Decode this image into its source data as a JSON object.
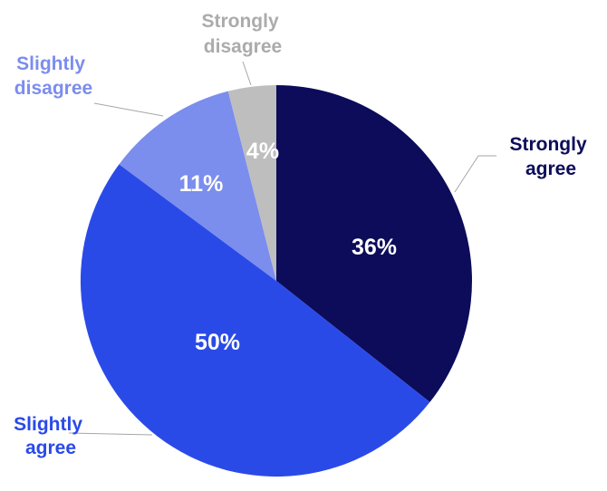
{
  "chart_data": {
    "type": "pie",
    "title": "",
    "start_angle_deg": 0,
    "direction": "clockwise",
    "slices": [
      {
        "label_lines": [
          "Strongly",
          "agree"
        ],
        "value": 36,
        "value_label": "36%",
        "color": "#0c0c5a",
        "label_color": "#0c0c5a"
      },
      {
        "label_lines": [
          "Slightly",
          "agree"
        ],
        "value": 50,
        "value_label": "50%",
        "color": "#2a4ae8",
        "label_color": "#2a4ae8"
      },
      {
        "label_lines": [
          "Slightly",
          "disagree"
        ],
        "value": 11,
        "value_label": "11%",
        "color": "#7b8ded",
        "label_color": "#7b8ded"
      },
      {
        "label_lines": [
          "Strongly",
          "disagree"
        ],
        "value": 4,
        "value_label": "4%",
        "color": "#bebebe",
        "label_color": "#ababab"
      }
    ]
  }
}
